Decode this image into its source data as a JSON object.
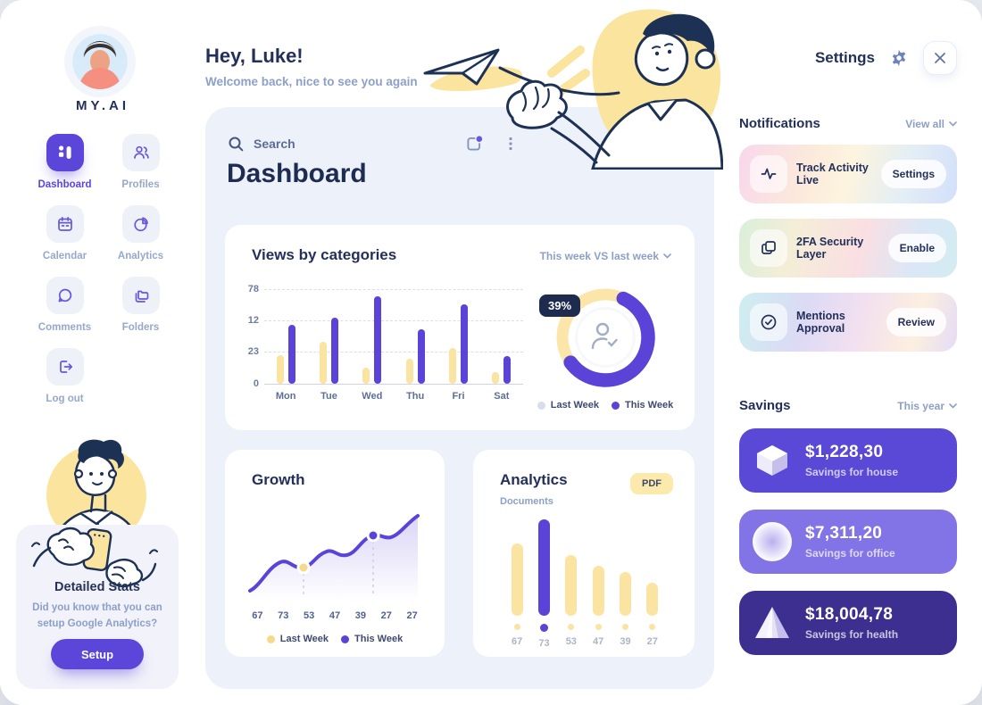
{
  "window": {
    "title": "MY.AI Dashboard"
  },
  "colors": {
    "accent_purple": "#5a43d6",
    "light_purple": "#8273e6",
    "dark_purple": "#3d2f8f",
    "bar_yellow": "#fbe3a2",
    "navy_text": "#22305a",
    "muted_blue_text": "#8da0c9",
    "panel_background": "#edf1fa",
    "badge_navy": "#1d2b4f"
  },
  "sidebar": {
    "logo": "MY.AI",
    "nav": [
      {
        "label": "Dashboard",
        "icon": "dashboard-icon",
        "active": true
      },
      {
        "label": "Profiles",
        "icon": "profiles-icon",
        "active": false
      },
      {
        "label": "Calendar",
        "icon": "calendar-icon",
        "active": false
      },
      {
        "label": "Analytics",
        "icon": "analytics-icon",
        "active": false
      },
      {
        "label": "Comments",
        "icon": "comments-icon",
        "active": false
      },
      {
        "label": "Folders",
        "icon": "folders-icon",
        "active": false
      },
      {
        "label": "Log out",
        "icon": "logout-icon",
        "active": false
      }
    ],
    "stats_card": {
      "title": "Detailed Stats",
      "description": "Did you know that you can setup Google Analytics?",
      "button_label": "Setup"
    }
  },
  "header": {
    "greeting": "Hey, Luke!",
    "subtitle": "Welcome back, nice to see you again"
  },
  "main": {
    "search": {
      "placeholder": "Search"
    },
    "title": "Dashboard",
    "views_card": {
      "title": "Views by categories",
      "filter_label": "This week VS last week"
    },
    "growth_card": {
      "title": "Growth"
    },
    "analytics_card": {
      "title": "Analytics",
      "subtitle": "Documents",
      "badge": "PDF"
    }
  },
  "settings_panel": {
    "title": "Settings",
    "notifications": {
      "heading": "Notifications",
      "view_all_label": "View all",
      "items": [
        {
          "icon": "activity-icon",
          "label": "Track Activity Live",
          "action_label": "Settings"
        },
        {
          "icon": "layers-icon",
          "label": "2FA Security Layer",
          "action_label": "Enable"
        },
        {
          "icon": "check-circle-icon",
          "label": "Mentions Approval",
          "action_label": "Review"
        }
      ]
    },
    "savings": {
      "heading": "Savings",
      "filter_label": "This year",
      "items": [
        {
          "icon": "cube-icon",
          "amount": "$1,228,30",
          "label": "Savings for house",
          "color": "#5a48d6"
        },
        {
          "icon": "sphere-icon",
          "amount": "$7,311,20",
          "label": "Savings for office",
          "color": "#8273e6"
        },
        {
          "icon": "pyramid-icon",
          "amount": "$18,004,78",
          "label": "Savings for health",
          "color": "#3d2f8f"
        }
      ]
    }
  },
  "chart_data": [
    {
      "id": "views_by_categories",
      "type": "bar",
      "title": "Views by categories",
      "categories": [
        "Mon",
        "Tue",
        "Wed",
        "Thu",
        "Fri",
        "Sat"
      ],
      "series": [
        {
          "name": "Last Week",
          "color": "#fbe3a2",
          "values_pct_of_max": [
            30,
            44,
            17,
            26,
            38,
            12
          ]
        },
        {
          "name": "This Week",
          "color": "#5a43d6",
          "values_pct_of_max": [
            62,
            70,
            92,
            58,
            84,
            29
          ]
        }
      ],
      "y_tick_labels": [
        "78",
        "12",
        "23",
        "0"
      ],
      "grid": "dashed-horizontal",
      "legend_position": "none"
    },
    {
      "id": "week_comparison_donut",
      "type": "pie",
      "center_value_label": "39%",
      "slices": [
        {
          "name": "This Week",
          "pct": 58,
          "color": "#5a43d6"
        },
        {
          "name": "Last Week",
          "pct": 42,
          "color": "#fbe3a2"
        }
      ],
      "legend": [
        {
          "label": "Last Week",
          "color": "#d8dee9"
        },
        {
          "label": "This Week",
          "color": "#5a43d6"
        }
      ]
    },
    {
      "id": "growth",
      "type": "line",
      "title": "Growth",
      "x_tick_labels": [
        "67",
        "73",
        "53",
        "47",
        "39",
        "27",
        "27"
      ],
      "line_color": "#5a43d6",
      "area_fill": "purple-gradient",
      "markers": [
        {
          "series": "Last Week",
          "color": "#fbe3a2",
          "x_index": 2
        },
        {
          "series": "This Week",
          "color": "#5a43d6",
          "x_index": 5
        }
      ],
      "legend": [
        {
          "label": "Last Week",
          "color": "#f7d98c"
        },
        {
          "label": "This Week",
          "color": "#5a43d6"
        }
      ]
    },
    {
      "id": "analytics_documents",
      "type": "bar",
      "title": "Analytics",
      "subtitle": "Documents",
      "categories": [
        "67",
        "73",
        "53",
        "47",
        "39",
        "27"
      ],
      "values_pct_of_max": [
        75,
        100,
        63,
        52,
        45,
        34
      ],
      "highlight_index": 1,
      "bar_color": "#fbe3a2",
      "highlight_color": "#5a43d6"
    }
  ]
}
